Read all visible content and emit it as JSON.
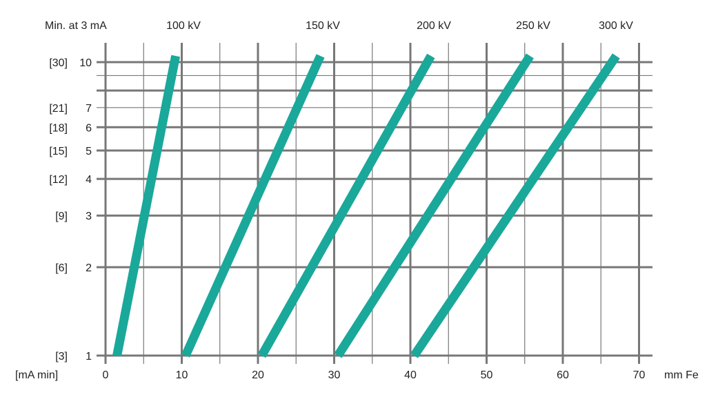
{
  "chart_data": {
    "type": "line",
    "title": "",
    "y_title": "Min. at 3 mA",
    "y_unit": "[mA min]",
    "x_unit": "mm Fe",
    "xlim": [
      0,
      70
    ],
    "ylim": [
      1,
      10
    ],
    "y_scale": "log",
    "grid": true,
    "line_color": "#1aa89a",
    "grid_color": "#777777",
    "x_ticks": [
      {
        "value": 0,
        "label": "0"
      },
      {
        "value": 10,
        "label": "10"
      },
      {
        "value": 20,
        "label": "20"
      },
      {
        "value": 30,
        "label": "30"
      },
      {
        "value": 40,
        "label": "40"
      },
      {
        "value": 50,
        "label": "50"
      },
      {
        "value": 60,
        "label": "60"
      },
      {
        "value": 70,
        "label": "70"
      }
    ],
    "x_minor_ticks": [
      5,
      15,
      25,
      35,
      45,
      55,
      65
    ],
    "y_ticks": [
      {
        "value": 1,
        "label": "1",
        "mamin_label": "[3]"
      },
      {
        "value": 2,
        "label": "2",
        "mamin_label": "[6]"
      },
      {
        "value": 3,
        "label": "3",
        "mamin_label": "[9]"
      },
      {
        "value": 4,
        "label": "4",
        "mamin_label": "[12]"
      },
      {
        "value": 5,
        "label": "5",
        "mamin_label": "[15]"
      },
      {
        "value": 6,
        "label": "6",
        "mamin_label": "[18]"
      },
      {
        "value": 7,
        "label": "7",
        "mamin_label": "[21]"
      },
      {
        "value": 10,
        "label": "10",
        "mamin_label": "[30]"
      }
    ],
    "y_gridlines": [
      {
        "value": 1,
        "weight": "heavy"
      },
      {
        "value": 2,
        "weight": "heavy"
      },
      {
        "value": 3,
        "weight": "heavy"
      },
      {
        "value": 4,
        "weight": "heavy"
      },
      {
        "value": 5,
        "weight": "heavy"
      },
      {
        "value": 6,
        "weight": "heavy"
      },
      {
        "value": 7,
        "weight": "light"
      },
      {
        "value": 8,
        "weight": "heavy"
      },
      {
        "value": 9,
        "weight": "light"
      },
      {
        "value": 10,
        "weight": "heavy"
      }
    ],
    "series": [
      {
        "name": "100 kV",
        "x": [
          1.5,
          9.2
        ],
        "y": [
          1,
          10.5
        ]
      },
      {
        "name": "150 kV",
        "x": [
          10.5,
          28.2
        ],
        "y": [
          1,
          10.5
        ]
      },
      {
        "name": "200 kV",
        "x": [
          20.5,
          42.7
        ],
        "y": [
          1,
          10.5
        ]
      },
      {
        "name": "250 kV",
        "x": [
          30.5,
          55.7
        ],
        "y": [
          1,
          10.5
        ]
      },
      {
        "name": "300 kV",
        "x": [
          40.5,
          67.0
        ],
        "y": [
          1,
          10.5
        ]
      }
    ]
  }
}
